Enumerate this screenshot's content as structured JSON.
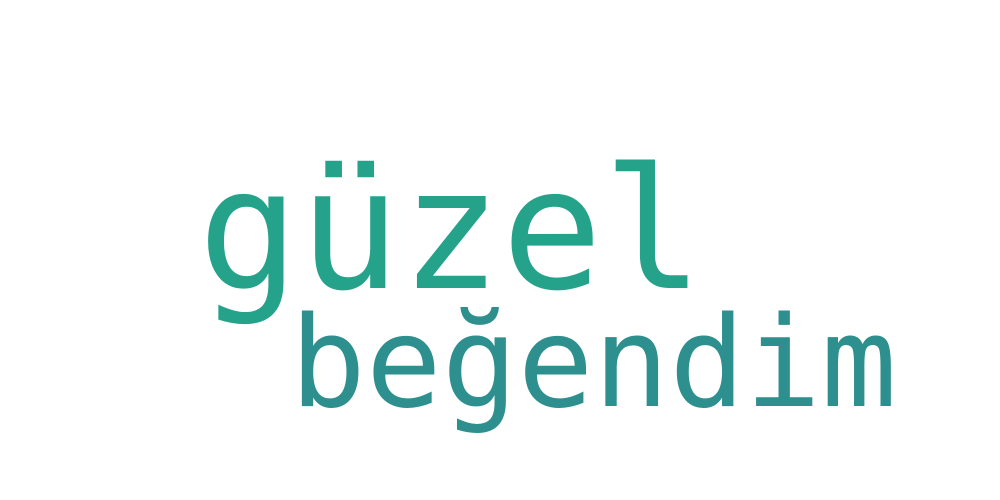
{
  "words": [
    {
      "text": "güzel",
      "color": "#25a38a"
    },
    {
      "text": "beğendim",
      "color": "#2d8f8e"
    }
  ]
}
